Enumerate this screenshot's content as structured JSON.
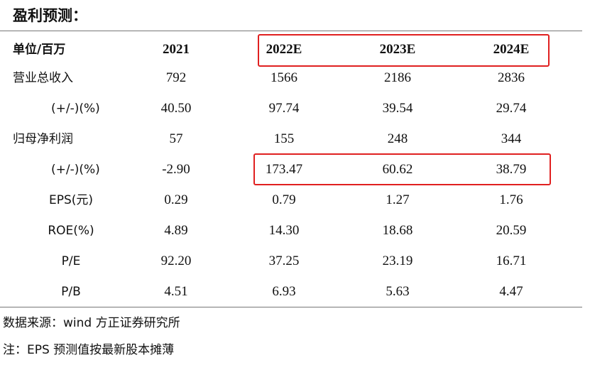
{
  "title": "盈利预测：",
  "table": {
    "header": [
      "单位/百万",
      "2021",
      "2022E",
      "2023E",
      "2024E"
    ],
    "rows": [
      [
        "营业总收入",
        "792",
        "1566",
        "2186",
        "2836"
      ],
      [
        "(+/-)(%)",
        "40.50",
        "97.74",
        "39.54",
        "29.74"
      ],
      [
        "归母净利润",
        "57",
        "155",
        "248",
        "344"
      ],
      [
        "(+/-)(%)",
        "-2.90",
        "173.47",
        "60.62",
        "38.79"
      ],
      [
        "EPS(元)",
        "0.29",
        "0.79",
        "1.27",
        "1.76"
      ],
      [
        "ROE(%)",
        "4.89",
        "14.30",
        "18.68",
        "20.59"
      ],
      [
        "P/E",
        "92.20",
        "37.25",
        "23.19",
        "16.71"
      ],
      [
        "P/B",
        "4.51",
        "6.93",
        "5.63",
        "4.47"
      ]
    ]
  },
  "notes": [
    "数据来源：wind 方正证券研究所",
    "注：EPS 预测值按最新股本摊薄"
  ]
}
